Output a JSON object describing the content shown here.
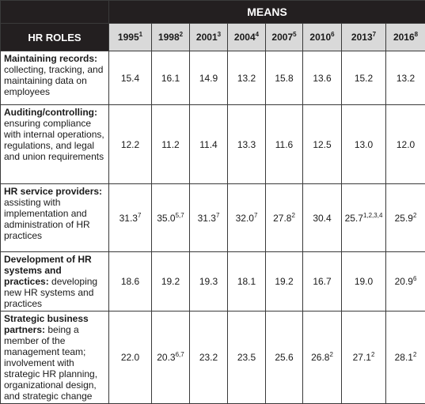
{
  "header": {
    "means": "MEANS",
    "hr_roles": "HR ROLES",
    "years": [
      {
        "y": "1995",
        "s": "1"
      },
      {
        "y": "1998",
        "s": "2"
      },
      {
        "y": "2001",
        "s": "3"
      },
      {
        "y": "2004",
        "s": "4"
      },
      {
        "y": "2007",
        "s": "5"
      },
      {
        "y": "2010",
        "s": "6"
      },
      {
        "y": "2013",
        "s": "7"
      },
      {
        "y": "2016",
        "s": "8"
      }
    ]
  },
  "rows": [
    {
      "title": "Maintaining records:",
      "desc": " collecting, tracking, and maintaining data on employees",
      "cells": [
        {
          "v": "15.4",
          "s": ""
        },
        {
          "v": "16.1",
          "s": ""
        },
        {
          "v": "14.9",
          "s": ""
        },
        {
          "v": "13.2",
          "s": ""
        },
        {
          "v": "15.8",
          "s": ""
        },
        {
          "v": "13.6",
          "s": ""
        },
        {
          "v": "15.2",
          "s": ""
        },
        {
          "v": "13.2",
          "s": ""
        }
      ]
    },
    {
      "title": "Auditing/controlling:",
      "desc": " ensuring compliance with internal operations, regulations, and legal and union requirements",
      "cells": [
        {
          "v": "12.2",
          "s": ""
        },
        {
          "v": "11.2",
          "s": ""
        },
        {
          "v": "11.4",
          "s": ""
        },
        {
          "v": "13.3",
          "s": ""
        },
        {
          "v": "11.6",
          "s": ""
        },
        {
          "v": "12.5",
          "s": ""
        },
        {
          "v": "13.0",
          "s": ""
        },
        {
          "v": "12.0",
          "s": ""
        }
      ]
    },
    {
      "title": "HR service providers:",
      "desc": " assisting with implementation and administration of HR practices",
      "cells": [
        {
          "v": "31.3",
          "s": "7"
        },
        {
          "v": "35.0",
          "s": "5,7"
        },
        {
          "v": "31.3",
          "s": "7"
        },
        {
          "v": "32.0",
          "s": "7"
        },
        {
          "v": "27.8",
          "s": "2"
        },
        {
          "v": "30.4",
          "s": ""
        },
        {
          "v": "25.7",
          "s": "1,2,3,4"
        },
        {
          "v": "25.9",
          "s": "2"
        }
      ]
    },
    {
      "title": "Development of HR systems and practices:",
      "desc": " developing new HR systems and practices",
      "cells": [
        {
          "v": "18.6",
          "s": ""
        },
        {
          "v": "19.2",
          "s": ""
        },
        {
          "v": "19.3",
          "s": ""
        },
        {
          "v": "18.1",
          "s": ""
        },
        {
          "v": "19.2",
          "s": ""
        },
        {
          "v": "16.7",
          "s": ""
        },
        {
          "v": "19.0",
          "s": ""
        },
        {
          "v": "20.9",
          "s": "6"
        }
      ]
    },
    {
      "title": "Strategic business partners:",
      "desc": " being a member of the management team; involvement with strategic HR planning, organizational design, and strategic change",
      "cells": [
        {
          "v": "22.0",
          "s": ""
        },
        {
          "v": "20.3",
          "s": "6,7"
        },
        {
          "v": "23.2",
          "s": ""
        },
        {
          "v": "23.5",
          "s": ""
        },
        {
          "v": "25.6",
          "s": ""
        },
        {
          "v": "26.8",
          "s": "2"
        },
        {
          "v": "27.1",
          "s": "2"
        },
        {
          "v": "28.1",
          "s": "2"
        }
      ]
    }
  ]
}
